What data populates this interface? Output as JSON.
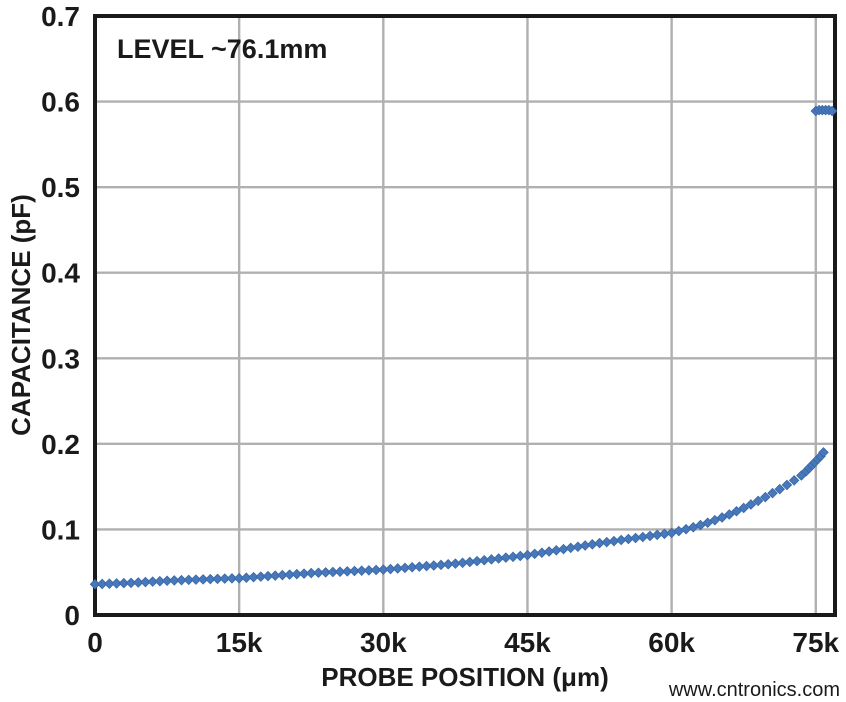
{
  "watermark": {
    "text": "www.cntronics.com",
    "color": "#b7dfb0"
  },
  "chart_data": {
    "type": "scatter",
    "annotation": {
      "text": "LEVEL ~76.1mm"
    },
    "xlabel": "PROBE POSITION (μm)",
    "ylabel": "CAPACITANCE (pF)",
    "xlim": [
      0,
      77000
    ],
    "ylim": [
      0,
      0.7
    ],
    "grid": true,
    "legend": "none",
    "x_ticks": [
      {
        "value": 0,
        "label": "0"
      },
      {
        "value": 15000,
        "label": "15k"
      },
      {
        "value": 30000,
        "label": "30k"
      },
      {
        "value": 45000,
        "label": "45k"
      },
      {
        "value": 60000,
        "label": "60k"
      },
      {
        "value": 75000,
        "label": "75k"
      }
    ],
    "y_ticks": [
      {
        "value": 0,
        "label": "0"
      },
      {
        "value": 0.1,
        "label": "0.1"
      },
      {
        "value": 0.2,
        "label": "0.2"
      },
      {
        "value": 0.3,
        "label": "0.3"
      },
      {
        "value": 0.4,
        "label": "0.4"
      },
      {
        "value": 0.5,
        "label": "0.5"
      },
      {
        "value": 0.6,
        "label": "0.6"
      },
      {
        "value": 0.7,
        "label": "0.7"
      }
    ],
    "colors": {
      "marker_fill": "#4678bb",
      "marker_stroke": "#3a67a6",
      "grid": "#b0b0b0",
      "axis": "#1a1a1a",
      "text": "#1a1a1a"
    },
    "marker": {
      "shape": "diamond",
      "size": 9.4
    },
    "series": [
      {
        "name": "capacitance-vs-probe-position",
        "points": [
          [
            0,
            0.036
          ],
          [
            750,
            0.0363
          ],
          [
            1500,
            0.0366
          ],
          [
            2250,
            0.0369
          ],
          [
            3000,
            0.0372
          ],
          [
            3750,
            0.0375
          ],
          [
            4500,
            0.038
          ],
          [
            5250,
            0.0385
          ],
          [
            6000,
            0.039
          ],
          [
            6750,
            0.0395
          ],
          [
            7500,
            0.04
          ],
          [
            8250,
            0.0404
          ],
          [
            9000,
            0.0407
          ],
          [
            9750,
            0.041
          ],
          [
            10500,
            0.0413
          ],
          [
            11250,
            0.0416
          ],
          [
            12000,
            0.0419
          ],
          [
            12750,
            0.0422
          ],
          [
            13500,
            0.0425
          ],
          [
            14250,
            0.0428
          ],
          [
            15000,
            0.043
          ],
          [
            15750,
            0.0436
          ],
          [
            16500,
            0.0442
          ],
          [
            17250,
            0.0448
          ],
          [
            18000,
            0.0454
          ],
          [
            18750,
            0.046
          ],
          [
            19500,
            0.0466
          ],
          [
            20250,
            0.0472
          ],
          [
            21000,
            0.0478
          ],
          [
            21750,
            0.0484
          ],
          [
            22500,
            0.049
          ],
          [
            23250,
            0.0494
          ],
          [
            24000,
            0.0498
          ],
          [
            24750,
            0.0502
          ],
          [
            25500,
            0.0506
          ],
          [
            26250,
            0.051
          ],
          [
            27000,
            0.0514
          ],
          [
            27750,
            0.0518
          ],
          [
            28500,
            0.0522
          ],
          [
            29250,
            0.0526
          ],
          [
            30000,
            0.053
          ],
          [
            30750,
            0.0537
          ],
          [
            31500,
            0.0544
          ],
          [
            32250,
            0.0551
          ],
          [
            33000,
            0.0558
          ],
          [
            33750,
            0.0565
          ],
          [
            34500,
            0.0572
          ],
          [
            35250,
            0.0579
          ],
          [
            36000,
            0.0586
          ],
          [
            36750,
            0.0593
          ],
          [
            37500,
            0.06
          ],
          [
            38250,
            0.061
          ],
          [
            39000,
            0.062
          ],
          [
            39750,
            0.063
          ],
          [
            40500,
            0.064
          ],
          [
            41250,
            0.065
          ],
          [
            42000,
            0.066
          ],
          [
            42750,
            0.067
          ],
          [
            43500,
            0.068
          ],
          [
            44250,
            0.069
          ],
          [
            45000,
            0.07
          ],
          [
            45750,
            0.0714
          ],
          [
            46500,
            0.0728
          ],
          [
            47250,
            0.0742
          ],
          [
            48000,
            0.0756
          ],
          [
            48750,
            0.077
          ],
          [
            49500,
            0.0784
          ],
          [
            50250,
            0.0798
          ],
          [
            51000,
            0.0812
          ],
          [
            51750,
            0.0826
          ],
          [
            52500,
            0.084
          ],
          [
            53250,
            0.0852
          ],
          [
            54000,
            0.0864
          ],
          [
            54750,
            0.0876
          ],
          [
            55500,
            0.0888
          ],
          [
            56250,
            0.09
          ],
          [
            57000,
            0.0912
          ],
          [
            57750,
            0.0924
          ],
          [
            58500,
            0.0936
          ],
          [
            59250,
            0.0948
          ],
          [
            60000,
            0.096
          ],
          [
            60750,
            0.0981
          ],
          [
            61500,
            0.1003
          ],
          [
            62250,
            0.1026
          ],
          [
            63000,
            0.1051
          ],
          [
            63750,
            0.1078
          ],
          [
            64500,
            0.1108
          ],
          [
            65250,
            0.114
          ],
          [
            66000,
            0.1175
          ],
          [
            66750,
            0.1212
          ],
          [
            67500,
            0.1251
          ],
          [
            68250,
            0.1292
          ],
          [
            69000,
            0.1334
          ],
          [
            69750,
            0.1378
          ],
          [
            70500,
            0.1424
          ],
          [
            71250,
            0.1471
          ],
          [
            72000,
            0.152
          ],
          [
            72750,
            0.1573
          ],
          [
            73500,
            0.163
          ],
          [
            74000,
            0.168
          ],
          [
            74300,
            0.1715
          ],
          [
            74600,
            0.175
          ],
          [
            74900,
            0.1785
          ],
          [
            75200,
            0.182
          ],
          [
            75500,
            0.1855
          ],
          [
            75800,
            0.19
          ]
        ]
      },
      {
        "name": "liquid-level-contact-cluster",
        "points": [
          [
            75000,
            0.589
          ],
          [
            75340,
            0.59
          ],
          [
            75680,
            0.59
          ],
          [
            76020,
            0.59
          ],
          [
            76360,
            0.59
          ],
          [
            76700,
            0.589
          ]
        ]
      }
    ]
  }
}
